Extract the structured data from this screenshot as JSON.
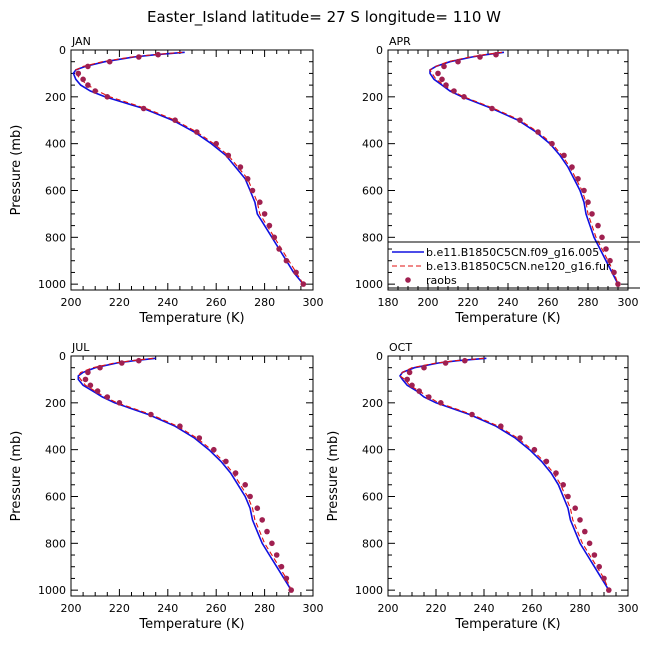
{
  "figure": {
    "title": "Easter_Island  latitude= 27 S longitude= 110 W"
  },
  "legend": {
    "entries": [
      {
        "label": "b.e11.B1850C5CN.f09_g16.005",
        "style": "solid",
        "color": "#1010e0"
      },
      {
        "label": "b.e13.B1850C5CN.ne120_g16.fur",
        "style": "dashed",
        "color": "#e01010"
      },
      {
        "label": "raobs",
        "style": "dots",
        "color": "#a02050"
      }
    ]
  },
  "colors": {
    "model1": "#1010e0",
    "model2": "#e01010",
    "obs": "#a02050",
    "axis": "#000000"
  },
  "chart_data": [
    {
      "type": "line",
      "month": "JAN",
      "xlabel": "Temperature (K)",
      "ylabel": "Pressure (mb)",
      "xlim": [
        200,
        300
      ],
      "ylim": [
        1025,
        0
      ],
      "xticks": [
        200,
        220,
        240,
        260,
        280,
        300
      ],
      "yticks": [
        0,
        200,
        400,
        600,
        800,
        1000
      ],
      "series": [
        {
          "name": "b.e11.B1850C5CN.f09_g16.005",
          "pressure": [
            10,
            20,
            30,
            50,
            70,
            85,
            100,
            125,
            150,
            175,
            200,
            250,
            300,
            350,
            400,
            450,
            500,
            550,
            600,
            650,
            700,
            750,
            800,
            850,
            900,
            950,
            1000
          ],
          "temperature": [
            247,
            235,
            226,
            214,
            206,
            202,
            201,
            202,
            204,
            208,
            214,
            230,
            242,
            251,
            258,
            264,
            268,
            272,
            274,
            276,
            277,
            280,
            283,
            286,
            289,
            292,
            296
          ]
        },
        {
          "name": "b.e13.B1850C5CN.ne120_g16.fur",
          "pressure": [
            10,
            20,
            30,
            50,
            70,
            85,
            100,
            125,
            150,
            175,
            200,
            250,
            300,
            350,
            400,
            450,
            500,
            550,
            600,
            650,
            700,
            750,
            800,
            850,
            900,
            950,
            1000
          ],
          "temperature": [
            246,
            234,
            225,
            213,
            205,
            202,
            202,
            204,
            207,
            211,
            216,
            231,
            243,
            252,
            259,
            265,
            269,
            273,
            275,
            277,
            278,
            281,
            284,
            287,
            290,
            293,
            296
          ]
        },
        {
          "name": "raobs",
          "pressure": [
            20,
            30,
            50,
            70,
            100,
            125,
            150,
            175,
            200,
            250,
            300,
            350,
            400,
            450,
            500,
            550,
            600,
            650,
            700,
            750,
            800,
            850,
            900,
            950,
            1000
          ],
          "temperature": [
            236,
            228,
            216,
            207,
            203,
            205,
            207,
            210,
            215,
            230,
            243,
            252,
            260,
            265,
            270,
            273,
            275,
            278,
            280,
            282,
            284,
            286,
            289,
            293,
            296
          ]
        }
      ]
    },
    {
      "type": "line",
      "month": "APR",
      "xlabel": "Temperature (K)",
      "ylabel": "",
      "xlim": [
        180,
        300
      ],
      "ylim": [
        1025,
        0
      ],
      "xticks": [
        180,
        200,
        220,
        240,
        260,
        280,
        300
      ],
      "yticks": [
        0,
        200,
        400,
        600,
        800,
        1000
      ],
      "series": [
        {
          "name": "b.e11.B1850C5CN.f09_g16.005",
          "pressure": [
            10,
            20,
            30,
            50,
            70,
            85,
            100,
            125,
            150,
            175,
            200,
            250,
            300,
            350,
            400,
            450,
            500,
            550,
            600,
            650,
            700,
            750,
            800,
            850,
            900,
            950,
            1000
          ],
          "temperature": [
            238,
            229,
            222,
            211,
            204,
            201,
            201,
            203,
            207,
            211,
            217,
            232,
            245,
            254,
            261,
            266,
            270,
            273,
            276,
            278,
            279,
            281,
            283,
            286,
            289,
            292,
            295
          ]
        },
        {
          "name": "b.e13.B1850C5CN.ne120_g16.fur",
          "pressure": [
            10,
            20,
            30,
            50,
            70,
            85,
            100,
            125,
            150,
            175,
            200,
            250,
            300,
            350,
            400,
            450,
            500,
            550,
            600,
            650,
            700,
            750,
            800,
            850,
            900,
            950,
            1000
          ],
          "temperature": [
            237,
            228,
            221,
            210,
            204,
            201,
            202,
            204,
            208,
            212,
            218,
            233,
            246,
            255,
            262,
            267,
            271,
            274,
            277,
            279,
            280,
            282,
            284,
            287,
            290,
            293,
            295
          ]
        },
        {
          "name": "raobs",
          "pressure": [
            20,
            30,
            50,
            70,
            100,
            125,
            150,
            175,
            200,
            250,
            300,
            350,
            400,
            450,
            500,
            550,
            600,
            650,
            700,
            750,
            800,
            850,
            900,
            950,
            1000
          ],
          "temperature": [
            234,
            226,
            215,
            208,
            205,
            207,
            209,
            213,
            218,
            232,
            246,
            255,
            262,
            268,
            272,
            275,
            278,
            280,
            282,
            285,
            287,
            289,
            291,
            293,
            295
          ]
        }
      ]
    },
    {
      "type": "line",
      "month": "JUL",
      "xlabel": "Temperature (K)",
      "ylabel": "Pressure (mb)",
      "xlim": [
        200,
        300
      ],
      "ylim": [
        1025,
        0
      ],
      "xticks": [
        200,
        220,
        240,
        260,
        280,
        300
      ],
      "yticks": [
        0,
        200,
        400,
        600,
        800,
        1000
      ],
      "series": [
        {
          "name": "b.e11.B1850C5CN.f09_g16.005",
          "pressure": [
            10,
            20,
            30,
            50,
            70,
            85,
            100,
            125,
            150,
            175,
            200,
            250,
            300,
            350,
            400,
            450,
            500,
            550,
            600,
            650,
            700,
            750,
            800,
            850,
            900,
            950,
            1000
          ],
          "temperature": [
            235,
            226,
            219,
            210,
            205,
            203,
            203,
            205,
            209,
            213,
            218,
            232,
            243,
            251,
            257,
            262,
            266,
            269,
            272,
            274,
            275,
            277,
            279,
            282,
            285,
            288,
            291
          ]
        },
        {
          "name": "b.e13.B1850C5CN.ne120_g16.fur",
          "pressure": [
            10,
            20,
            30,
            50,
            70,
            85,
            100,
            125,
            150,
            175,
            200,
            250,
            300,
            350,
            400,
            450,
            500,
            550,
            600,
            650,
            700,
            750,
            800,
            850,
            900,
            950,
            1000
          ],
          "temperature": [
            234,
            225,
            218,
            209,
            204,
            203,
            204,
            206,
            210,
            214,
            219,
            233,
            244,
            252,
            258,
            263,
            267,
            270,
            273,
            275,
            276,
            278,
            280,
            283,
            286,
            289,
            291
          ]
        },
        {
          "name": "raobs",
          "pressure": [
            20,
            30,
            50,
            70,
            100,
            125,
            150,
            175,
            200,
            250,
            300,
            350,
            400,
            450,
            500,
            550,
            600,
            650,
            700,
            750,
            800,
            850,
            900,
            950,
            1000
          ],
          "temperature": [
            228,
            221,
            212,
            207,
            206,
            208,
            211,
            215,
            220,
            233,
            245,
            253,
            259,
            264,
            268,
            272,
            274,
            277,
            279,
            281,
            283,
            285,
            287,
            289,
            291
          ]
        }
      ]
    },
    {
      "type": "line",
      "month": "OCT",
      "xlabel": "Temperature (K)",
      "ylabel": "Pressure (mb)",
      "xlim": [
        200,
        300
      ],
      "ylim": [
        1025,
        0
      ],
      "xticks": [
        200,
        220,
        240,
        260,
        280,
        300
      ],
      "yticks": [
        0,
        200,
        400,
        600,
        800,
        1000
      ],
      "series": [
        {
          "name": "b.e11.B1850C5CN.f09_g16.005",
          "pressure": [
            10,
            20,
            30,
            50,
            70,
            85,
            100,
            125,
            150,
            175,
            200,
            250,
            300,
            350,
            400,
            450,
            500,
            550,
            600,
            650,
            700,
            750,
            800,
            850,
            900,
            950,
            1000
          ],
          "temperature": [
            241,
            229,
            221,
            211,
            206,
            205,
            206,
            208,
            212,
            215,
            220,
            234,
            245,
            253,
            259,
            264,
            268,
            271,
            273,
            275,
            276,
            278,
            280,
            283,
            286,
            289,
            292
          ]
        },
        {
          "name": "b.e13.B1850C5CN.ne120_g16.fur",
          "pressure": [
            10,
            20,
            30,
            50,
            70,
            85,
            100,
            125,
            150,
            175,
            200,
            250,
            300,
            350,
            400,
            450,
            500,
            550,
            600,
            650,
            700,
            750,
            800,
            850,
            900,
            950,
            1000
          ],
          "temperature": [
            240,
            228,
            220,
            210,
            206,
            205,
            207,
            209,
            213,
            217,
            221,
            235,
            246,
            254,
            260,
            265,
            269,
            272,
            274,
            276,
            277,
            279,
            281,
            284,
            287,
            290,
            292
          ]
        },
        {
          "name": "raobs",
          "pressure": [
            20,
            30,
            50,
            70,
            100,
            125,
            150,
            175,
            200,
            250,
            300,
            350,
            400,
            450,
            500,
            550,
            600,
            650,
            700,
            750,
            800,
            850,
            900,
            950,
            1000
          ],
          "temperature": [
            232,
            224,
            215,
            209,
            208,
            210,
            213,
            217,
            222,
            235,
            247,
            255,
            261,
            266,
            270,
            273,
            275,
            278,
            280,
            282,
            284,
            286,
            288,
            290,
            292
          ]
        }
      ]
    }
  ]
}
